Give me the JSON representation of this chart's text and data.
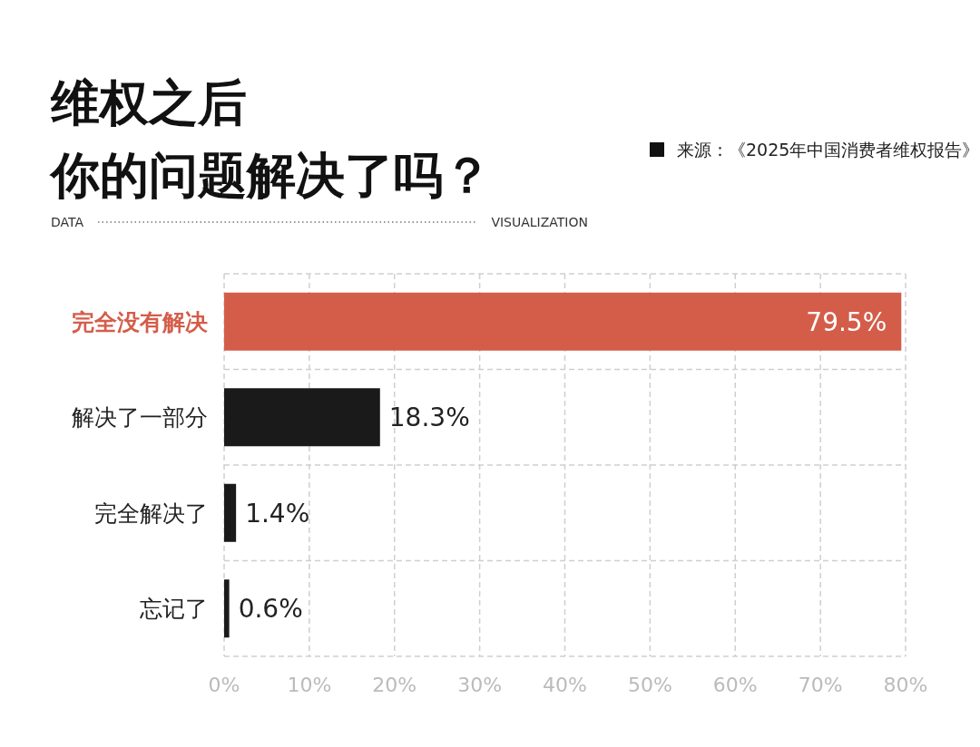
{
  "chart_data": {
    "type": "bar",
    "orientation": "horizontal",
    "title": "维权之后你的问题解决了吗？",
    "categories": [
      "完全没有解决",
      "解决了一部分",
      "完全解决了",
      "忘记了"
    ],
    "values": [
      79.5,
      18.3,
      1.4,
      0.6
    ],
    "colors": [
      "#d45d4a",
      "#1a1a1a",
      "#1a1a1a",
      "#1a1a1a"
    ],
    "value_labels": [
      "79.5%",
      "18.3%",
      "1.4%",
      "0.6%"
    ],
    "xlim": [
      0,
      80
    ],
    "xticks": [
      {
        "value": 0,
        "label": "0%"
      },
      {
        "value": 10,
        "label": "10%"
      },
      {
        "value": 20,
        "label": "20%"
      },
      {
        "value": 30,
        "label": "30%"
      },
      {
        "value": 40,
        "label": "40%"
      },
      {
        "value": 50,
        "label": "50%"
      },
      {
        "value": 60,
        "label": "60%"
      },
      {
        "value": 70,
        "label": "70%"
      },
      {
        "value": 80,
        "label": "80%"
      }
    ],
    "grid": true,
    "annotations": [
      "来源：《2025年中国消费者维权报告》",
      "DATA",
      "VISUALIZATION"
    ]
  }
}
